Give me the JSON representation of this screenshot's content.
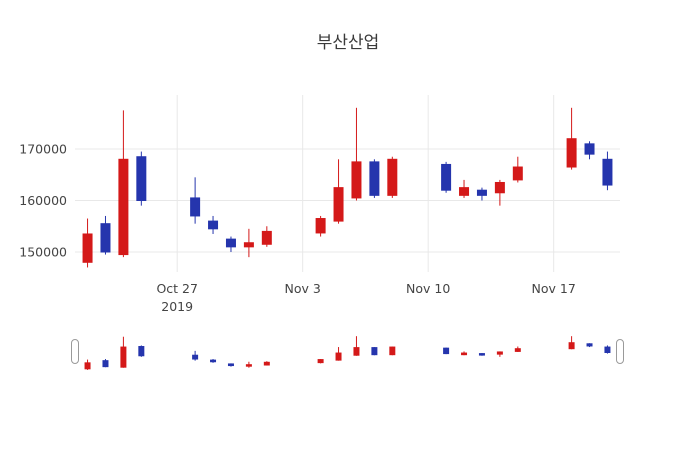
{
  "chart_data": {
    "type": "candlestick",
    "title": "부산산업",
    "increasing_color": "#d41919",
    "decreasing_color": "#2535ad",
    "grid_color": "#e8e8e8",
    "tick_label_color": "#444444",
    "title_color": "#3a3a3a",
    "grid": true,
    "legend": false,
    "rangeslider": true,
    "ylim": [
      146000,
      180000
    ],
    "y_ticks": [
      150000,
      160000,
      170000
    ],
    "x_ticks": [
      {
        "date": "2019-10-27",
        "label": "Oct 27",
        "sublabel": "2019"
      },
      {
        "date": "2019-11-03",
        "label": "Nov 3",
        "sublabel": ""
      },
      {
        "date": "2019-11-10",
        "label": "Nov 10",
        "sublabel": ""
      },
      {
        "date": "2019-11-17",
        "label": "Nov 17",
        "sublabel": ""
      }
    ],
    "series": [
      {
        "date": "2019-10-22",
        "open": 148000,
        "high": 156500,
        "low": 147000,
        "close": 153500
      },
      {
        "date": "2019-10-23",
        "open": 155500,
        "high": 157000,
        "low": 149500,
        "close": 150000
      },
      {
        "date": "2019-10-24",
        "open": 149500,
        "high": 177500,
        "low": 149000,
        "close": 168000
      },
      {
        "date": "2019-10-25",
        "open": 168500,
        "high": 169500,
        "low": 159000,
        "close": 160000
      },
      {
        "date": "2019-10-28",
        "open": 160500,
        "high": 164500,
        "low": 155500,
        "close": 157000
      },
      {
        "date": "2019-10-29",
        "open": 156000,
        "high": 157000,
        "low": 153500,
        "close": 154500
      },
      {
        "date": "2019-10-30",
        "open": 152500,
        "high": 153000,
        "low": 150000,
        "close": 151000
      },
      {
        "date": "2019-10-31",
        "open": 151000,
        "high": 154500,
        "low": 149000,
        "close": 151800
      },
      {
        "date": "2019-11-01",
        "open": 151500,
        "high": 155000,
        "low": 151000,
        "close": 154000
      },
      {
        "date": "2019-11-04",
        "open": 153700,
        "high": 157000,
        "low": 153000,
        "close": 156500
      },
      {
        "date": "2019-11-05",
        "open": 156000,
        "high": 168000,
        "low": 155500,
        "close": 162500
      },
      {
        "date": "2019-11-06",
        "open": 160500,
        "high": 178000,
        "low": 160000,
        "close": 167500
      },
      {
        "date": "2019-11-07",
        "open": 167500,
        "high": 168000,
        "low": 160500,
        "close": 161000
      },
      {
        "date": "2019-11-08",
        "open": 161000,
        "high": 168500,
        "low": 160500,
        "close": 168000
      },
      {
        "date": "2019-11-11",
        "open": 167000,
        "high": 167500,
        "low": 161500,
        "close": 162000
      },
      {
        "date": "2019-11-12",
        "open": 161000,
        "high": 164000,
        "low": 160500,
        "close": 162500
      },
      {
        "date": "2019-11-13",
        "open": 162000,
        "high": 162500,
        "low": 160000,
        "close": 161000
      },
      {
        "date": "2019-11-14",
        "open": 161500,
        "high": 164000,
        "low": 159000,
        "close": 163500
      },
      {
        "date": "2019-11-15",
        "open": 164000,
        "high": 168500,
        "low": 163500,
        "close": 166500
      },
      {
        "date": "2019-11-18",
        "open": 166500,
        "high": 178000,
        "low": 166000,
        "close": 172000
      },
      {
        "date": "2019-11-19",
        "open": 171000,
        "high": 171500,
        "low": 168000,
        "close": 169000
      },
      {
        "date": "2019-11-20",
        "open": 168000,
        "high": 169500,
        "low": 162000,
        "close": 163000
      }
    ]
  }
}
